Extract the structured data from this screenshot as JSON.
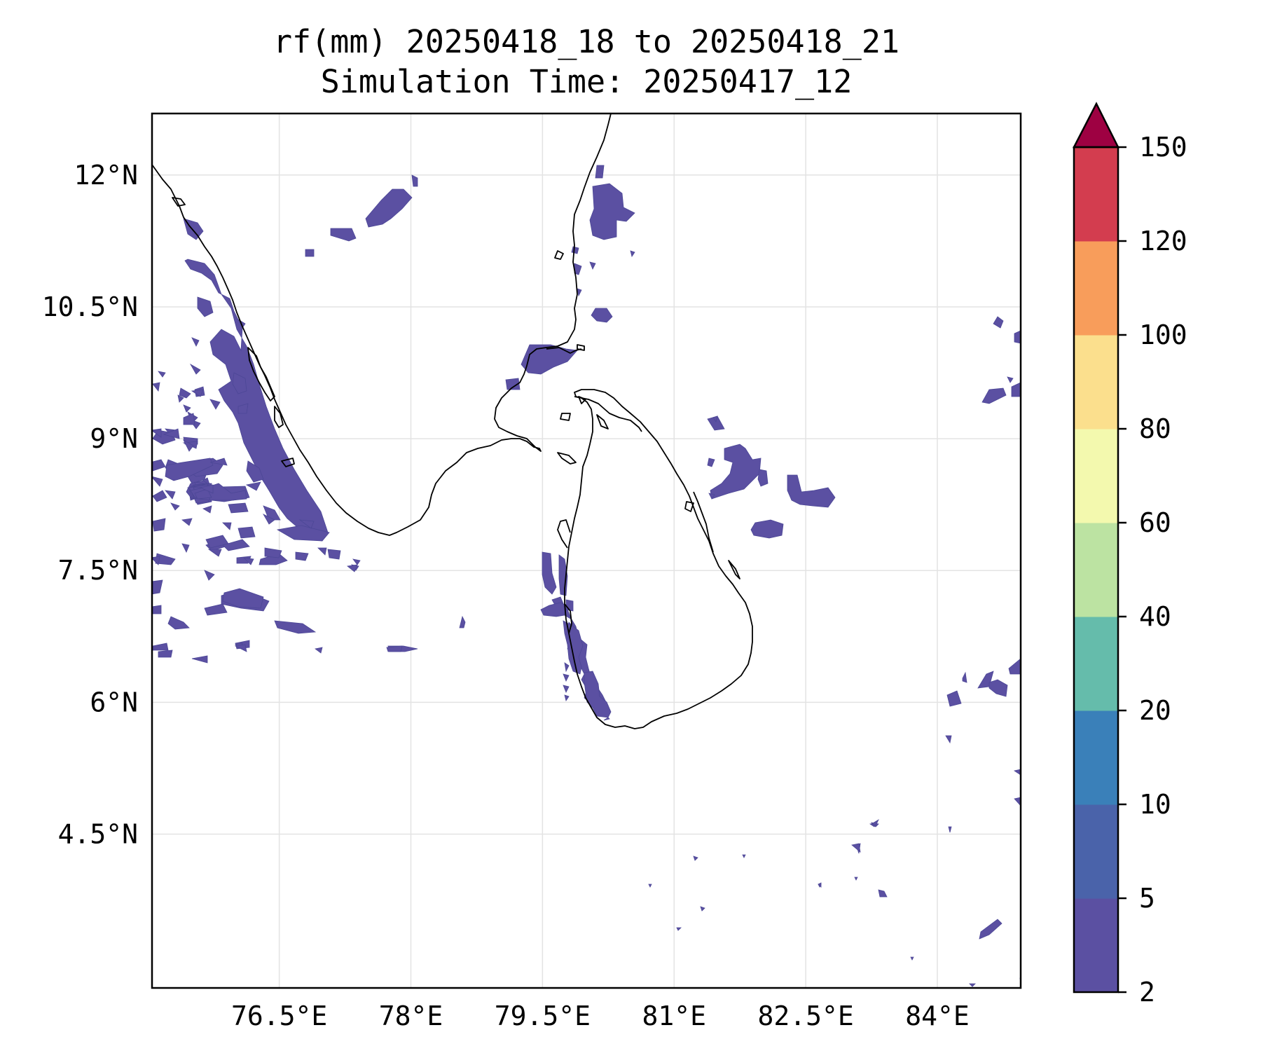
{
  "title": {
    "line1": "rf(mm) 20250418_18 to 20250418_21",
    "line2": "Simulation Time: 20250417_12"
  },
  "map": {
    "lon_range": [
      75.05,
      84.95
    ],
    "lat_range": [
      2.75,
      12.7
    ],
    "x_ticks": [
      {
        "value": 76.5,
        "label": "76.5°E"
      },
      {
        "value": 78.0,
        "label": "78°E"
      },
      {
        "value": 79.5,
        "label": "79.5°E"
      },
      {
        "value": 81.0,
        "label": "81°E"
      },
      {
        "value": 82.5,
        "label": "82.5°E"
      },
      {
        "value": 84.0,
        "label": "84°E"
      }
    ],
    "y_ticks": [
      {
        "value": 12.0,
        "label": "12°N"
      },
      {
        "value": 10.5,
        "label": "10.5°N"
      },
      {
        "value": 9.0,
        "label": "9°N"
      },
      {
        "value": 7.5,
        "label": "7.5°N"
      },
      {
        "value": 6.0,
        "label": "6°N"
      },
      {
        "value": 4.5,
        "label": "4.5°N"
      }
    ],
    "gridlines": true,
    "dominant_rain_class": "2–5 mm"
  },
  "colorbar": {
    "ticks": [
      "2",
      "5",
      "10",
      "20",
      "40",
      "60",
      "80",
      "100",
      "120",
      "150"
    ],
    "colors": [
      "#5b50a2",
      "#4a63aa",
      "#3a80b9",
      "#65bcab",
      "#bce3a2",
      "#f3f9ae",
      "#fbdf8d",
      "#f89d5b",
      "#d33d4f"
    ],
    "extend_color": "#9e0142",
    "extend": "max"
  }
}
